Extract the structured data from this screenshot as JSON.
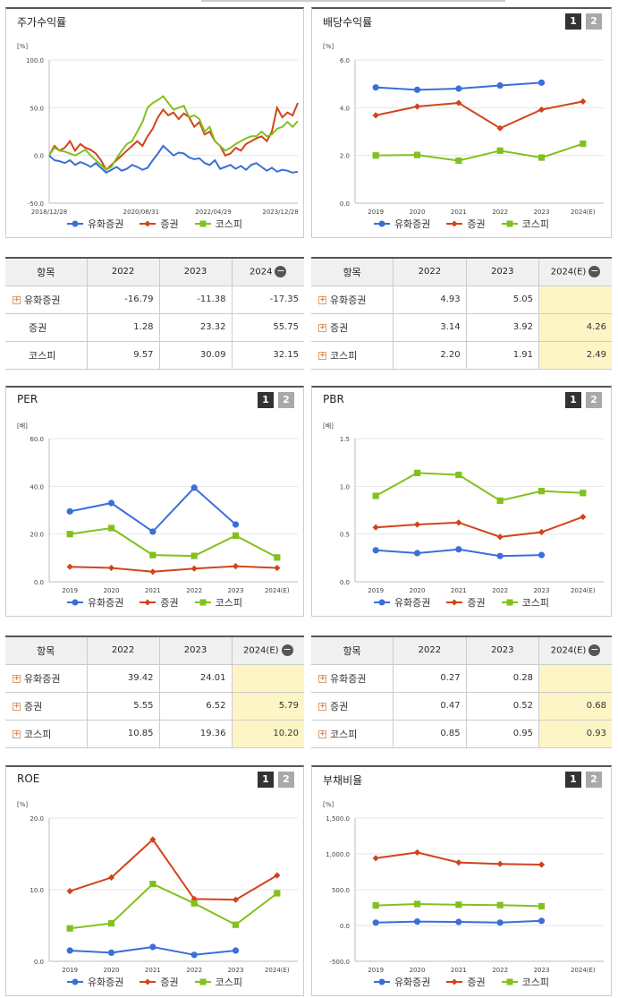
{
  "series_names": [
    "유화증권",
    "증권",
    "코스피"
  ],
  "colors": {
    "s0": "#3a6fd8",
    "s1": "#d2441a",
    "s2": "#82c11d"
  },
  "panels": {
    "stock": {
      "title": "주가수익률",
      "unit": "[%]",
      "yticks": [
        "100.0",
        "50.0",
        "0.0",
        "-50.0"
      ],
      "xticks": [
        "2018/12/28",
        "2020/08/31",
        "2022/04/29",
        "2023/12/28"
      ]
    },
    "div": {
      "title": "배당수익률",
      "unit": "[%]",
      "yticks": [
        "6.0",
        "4.0",
        "2.0",
        "0.0"
      ],
      "xticks": [
        "2019",
        "2020",
        "2021",
        "2022",
        "2023",
        "2024(E)"
      ]
    },
    "per": {
      "title": "PER",
      "unit": "[배]",
      "yticks": [
        "60.0",
        "40.0",
        "20.0",
        "0.0"
      ],
      "xticks": [
        "2019",
        "2020",
        "2021",
        "2022",
        "2023",
        "2024(E)"
      ]
    },
    "pbr": {
      "title": "PBR",
      "unit": "[배]",
      "yticks": [
        "1.5",
        "1.0",
        "0.5",
        "0.0"
      ],
      "xticks": [
        "2019",
        "2020",
        "2021",
        "2022",
        "2023",
        "2024(E)"
      ]
    },
    "roe": {
      "title": "ROE",
      "unit": "[%]",
      "yticks": [
        "20.0",
        "10.0",
        "0.0"
      ],
      "xticks": [
        "2019",
        "2020",
        "2021",
        "2022",
        "2023",
        "2024(E)"
      ]
    },
    "debt": {
      "title": "부채비율",
      "unit": "[%]",
      "yticks": [
        "1,500.0",
        "1,000.0",
        "500.0",
        "0.0",
        "-500.0"
      ],
      "xticks": [
        "2019",
        "2020",
        "2021",
        "2022",
        "2023",
        "2024(E)"
      ]
    }
  },
  "buttons": {
    "b1": "1",
    "b2": "2",
    "minus": "−",
    "plus": "+"
  },
  "tables": {
    "stock": {
      "headers": [
        "항목",
        "2022",
        "2023",
        "2024"
      ],
      "rows": [
        [
          "유화증권",
          "-16.79",
          "-11.38",
          "-17.35"
        ],
        [
          "증권",
          "1.28",
          "23.32",
          "55.75"
        ],
        [
          "코스피",
          "9.57",
          "30.09",
          "32.15"
        ]
      ]
    },
    "div": {
      "headers": [
        "항목",
        "2022",
        "2023",
        "2024(E)"
      ],
      "rows": [
        [
          "유화증권",
          "4.93",
          "5.05",
          ""
        ],
        [
          "증권",
          "3.14",
          "3.92",
          "4.26"
        ],
        [
          "코스피",
          "2.20",
          "1.91",
          "2.49"
        ]
      ]
    },
    "per": {
      "headers": [
        "항목",
        "2022",
        "2023",
        "2024(E)"
      ],
      "rows": [
        [
          "유화증권",
          "39.42",
          "24.01",
          ""
        ],
        [
          "증권",
          "5.55",
          "6.52",
          "5.79"
        ],
        [
          "코스피",
          "10.85",
          "19.36",
          "10.20"
        ]
      ]
    },
    "pbr": {
      "headers": [
        "항목",
        "2022",
        "2023",
        "2024(E)"
      ],
      "rows": [
        [
          "유화증권",
          "0.27",
          "0.28",
          ""
        ],
        [
          "증권",
          "0.47",
          "0.52",
          "0.68"
        ],
        [
          "코스피",
          "0.85",
          "0.95",
          "0.93"
        ]
      ]
    }
  },
  "chart_data": [
    {
      "id": "stock",
      "type": "line",
      "title": "주가수익률",
      "ylabel": "[%]",
      "ylim": [
        -50,
        100
      ],
      "x_labels": [
        "2018/12/28",
        "2020/08/31",
        "2022/04/29",
        "2023/12/28"
      ],
      "series": [
        {
          "name": "유화증권",
          "values": [
            0,
            -5,
            -6,
            -8,
            -5,
            -10,
            -7,
            -9,
            -12,
            -8,
            -13,
            -18,
            -15,
            -12,
            -16,
            -14,
            -10,
            -12,
            -15,
            -13,
            -5,
            2,
            10,
            5,
            0,
            3,
            2,
            -2,
            -4,
            -3,
            -8,
            -10,
            -5,
            -14,
            -12,
            -10,
            -14,
            -11,
            -15,
            -10,
            -8,
            -12,
            -16,
            -13,
            -17,
            -15,
            -16,
            -18,
            -17
          ]
        },
        {
          "name": "증권",
          "values": [
            0,
            10,
            5,
            8,
            15,
            5,
            12,
            8,
            6,
            2,
            -5,
            -15,
            -10,
            -5,
            0,
            5,
            10,
            15,
            10,
            20,
            28,
            40,
            48,
            42,
            45,
            38,
            44,
            40,
            30,
            35,
            22,
            25,
            15,
            10,
            0,
            2,
            8,
            5,
            12,
            15,
            18,
            20,
            15,
            25,
            50,
            40,
            45,
            42,
            55
          ]
        },
        {
          "name": "코스피",
          "values": [
            0,
            8,
            5,
            4,
            2,
            0,
            3,
            6,
            0,
            -5,
            -10,
            -15,
            -12,
            -3,
            5,
            12,
            15,
            25,
            35,
            50,
            55,
            58,
            62,
            55,
            48,
            50,
            52,
            40,
            42,
            38,
            25,
            30,
            15,
            10,
            5,
            8,
            12,
            15,
            18,
            20,
            20,
            25,
            20,
            22,
            28,
            30,
            35,
            30,
            36
          ]
        }
      ]
    },
    {
      "id": "div",
      "type": "line",
      "title": "배당수익률",
      "ylabel": "[%]",
      "ylim": [
        0,
        6
      ],
      "x": [
        "2019",
        "2020",
        "2021",
        "2022",
        "2023",
        "2024(E)"
      ],
      "series": [
        {
          "name": "유화증권",
          "values": [
            4.85,
            4.75,
            4.8,
            4.93,
            5.05,
            null
          ]
        },
        {
          "name": "증권",
          "values": [
            3.68,
            4.05,
            4.2,
            3.14,
            3.92,
            4.26
          ]
        },
        {
          "name": "코스피",
          "values": [
            2.0,
            2.02,
            1.78,
            2.2,
            1.91,
            2.49
          ]
        }
      ]
    },
    {
      "id": "per",
      "type": "line",
      "title": "PER",
      "ylabel": "[배]",
      "ylim": [
        0,
        60
      ],
      "x": [
        "2019",
        "2020",
        "2021",
        "2022",
        "2023",
        "2024(E)"
      ],
      "series": [
        {
          "name": "유화증권",
          "values": [
            29.5,
            33,
            21,
            39.42,
            24.01,
            null
          ]
        },
        {
          "name": "증권",
          "values": [
            6.3,
            5.8,
            4.2,
            5.55,
            6.52,
            5.79
          ]
        },
        {
          "name": "코스피",
          "values": [
            20,
            22.5,
            11.2,
            10.85,
            19.36,
            10.2
          ]
        }
      ]
    },
    {
      "id": "pbr",
      "type": "line",
      "title": "PBR",
      "ylabel": "[배]",
      "ylim": [
        0,
        1.5
      ],
      "x": [
        "2019",
        "2020",
        "2021",
        "2022",
        "2023",
        "2024(E)"
      ],
      "series": [
        {
          "name": "유화증권",
          "values": [
            0.33,
            0.3,
            0.34,
            0.27,
            0.28,
            null
          ]
        },
        {
          "name": "증권",
          "values": [
            0.57,
            0.6,
            0.62,
            0.47,
            0.52,
            0.68
          ]
        },
        {
          "name": "코스피",
          "values": [
            0.9,
            1.14,
            1.12,
            0.85,
            0.95,
            0.93
          ]
        }
      ]
    },
    {
      "id": "roe",
      "type": "line",
      "title": "ROE",
      "ylabel": "[%]",
      "ylim": [
        0,
        20
      ],
      "x": [
        "2019",
        "2020",
        "2021",
        "2022",
        "2023",
        "2024(E)"
      ],
      "series": [
        {
          "name": "유화증권",
          "values": [
            1.5,
            1.2,
            2.0,
            0.9,
            1.5,
            null
          ]
        },
        {
          "name": "증권",
          "values": [
            9.8,
            11.7,
            17.0,
            8.7,
            8.6,
            12.0
          ]
        },
        {
          "name": "코스피",
          "values": [
            4.6,
            5.3,
            10.8,
            8.1,
            5.1,
            9.5
          ]
        }
      ]
    },
    {
      "id": "debt",
      "type": "line",
      "title": "부채비율",
      "ylabel": "[%]",
      "ylim": [
        -500,
        1500
      ],
      "x": [
        "2019",
        "2020",
        "2021",
        "2022",
        "2023",
        "2024(E)"
      ],
      "series": [
        {
          "name": "유화증권",
          "values": [
            40,
            55,
            50,
            40,
            65,
            null
          ]
        },
        {
          "name": "증권",
          "values": [
            940,
            1020,
            880,
            860,
            850,
            null
          ]
        },
        {
          "name": "코스피",
          "values": [
            280,
            300,
            290,
            285,
            270,
            null
          ]
        }
      ]
    }
  ]
}
